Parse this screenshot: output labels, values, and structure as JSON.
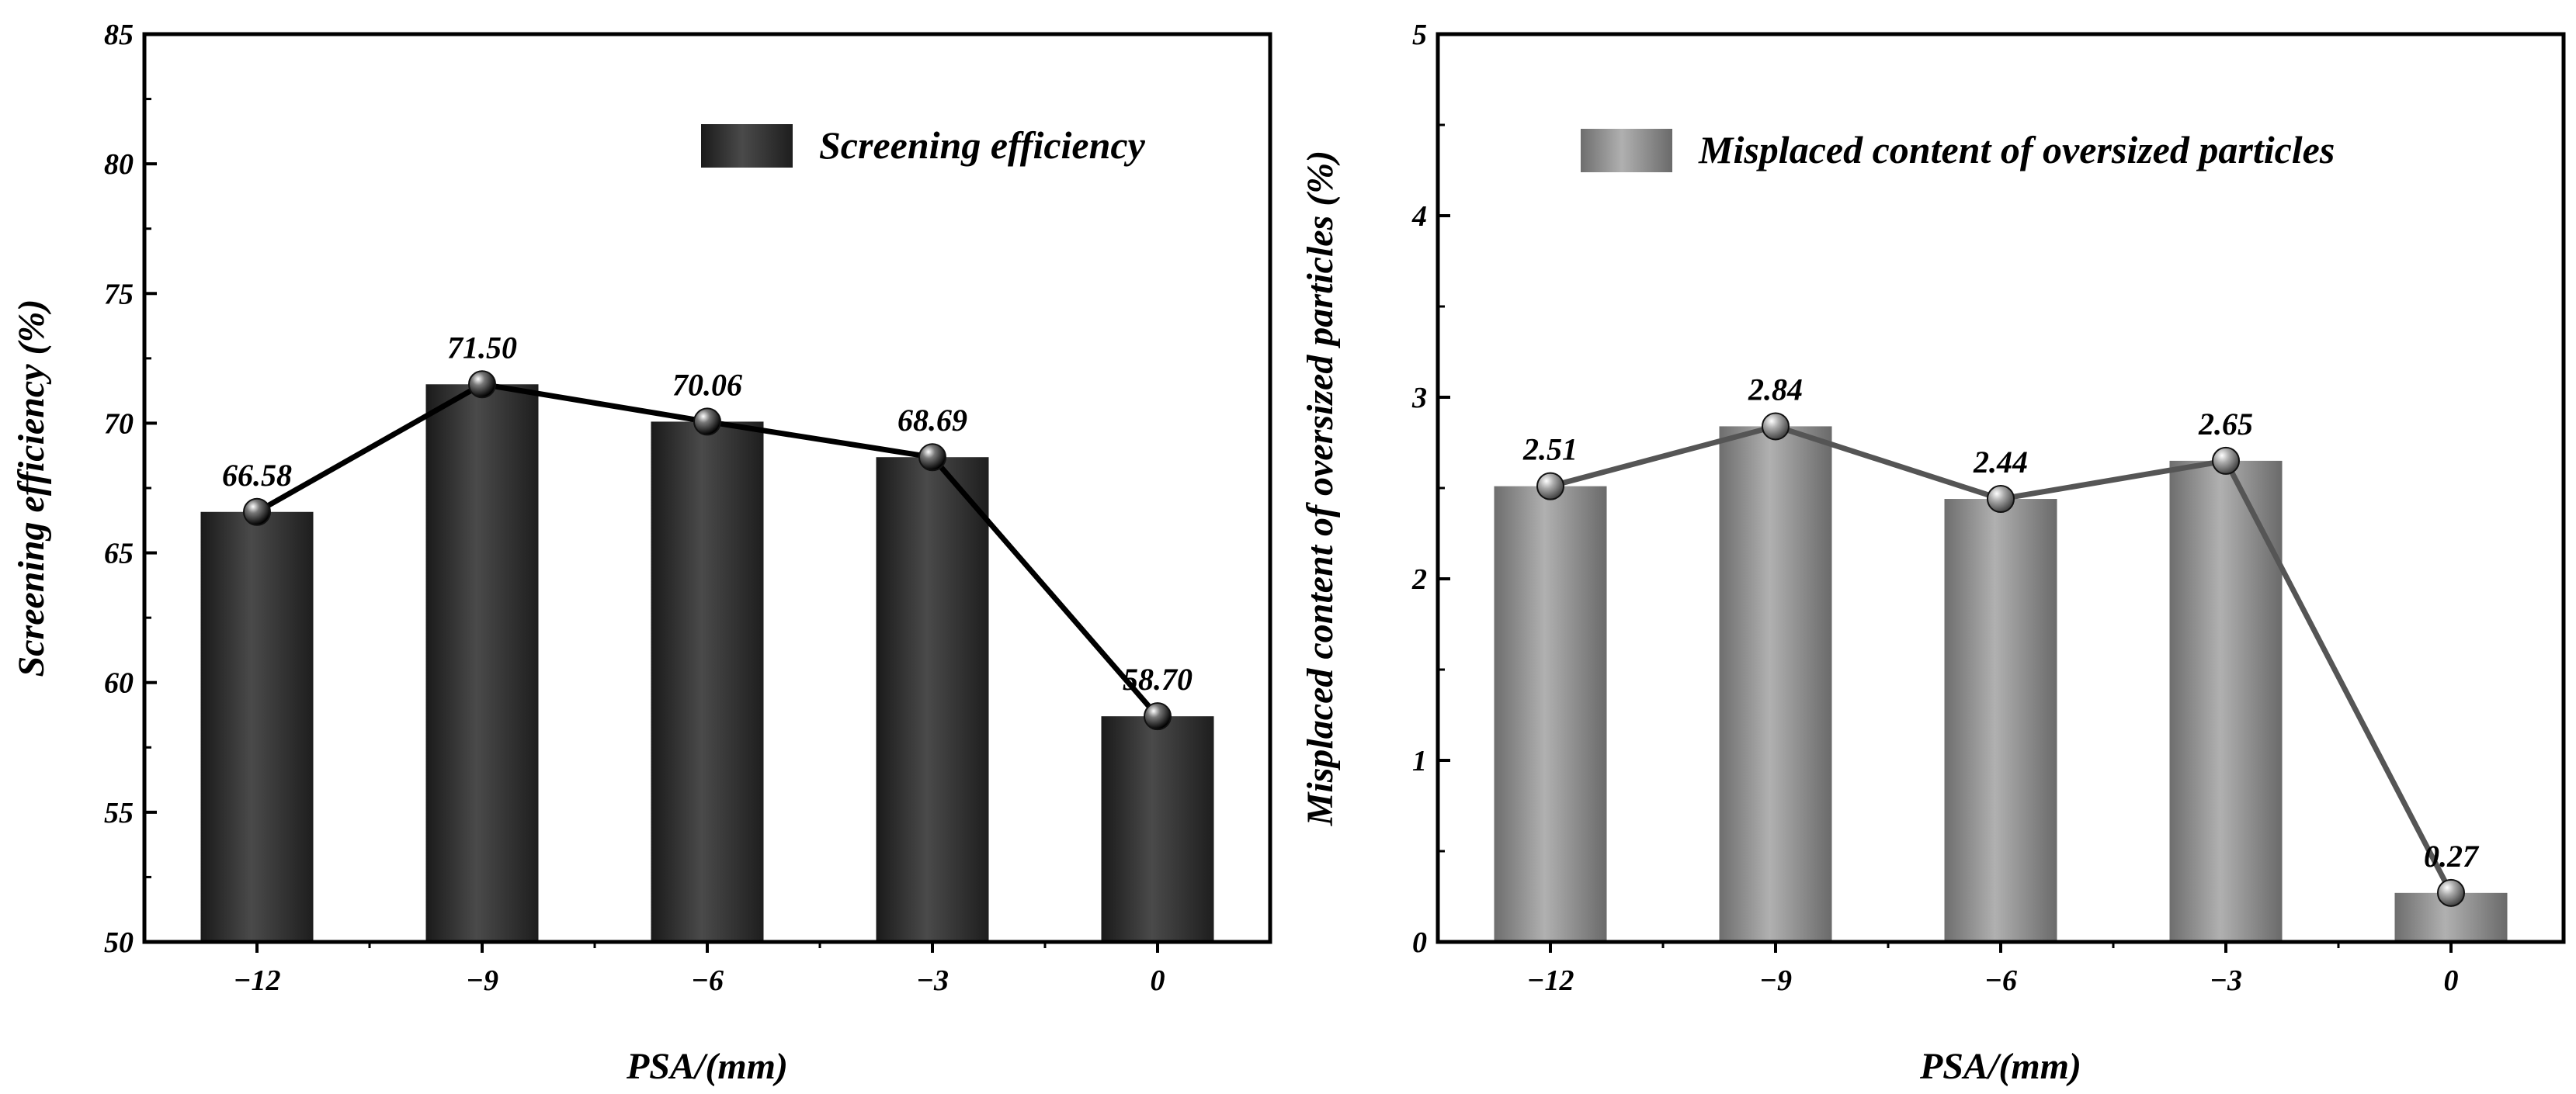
{
  "chart_data": [
    {
      "type": "bar",
      "title": "",
      "xlabel": "PSA/(mm)",
      "ylabel": "Screening efficiency (%)",
      "categories": [
        "−12",
        "−9",
        "−6",
        "−3",
        "0"
      ],
      "series": [
        {
          "name": "Screening efficiency",
          "values": [
            66.58,
            71.5,
            70.06,
            68.69,
            58.7
          ],
          "value_labels": [
            "66.58",
            "71.50",
            "70.06",
            "68.69",
            "58.70"
          ],
          "color": "#3a3a3a"
        }
      ],
      "overlay_line": true,
      "ylim": [
        50,
        85
      ],
      "yticks": [
        "50",
        "55",
        "60",
        "65",
        "70",
        "75",
        "80",
        "85"
      ],
      "grid": false,
      "legend": "top-right"
    },
    {
      "type": "bar",
      "title": "",
      "xlabel": "PSA/(mm)",
      "ylabel": "Misplaced content of oversized particles (%)",
      "categories": [
        "−12",
        "−9",
        "−6",
        "−3",
        "0"
      ],
      "series": [
        {
          "name": "Misplaced content of oversized particles",
          "values": [
            2.51,
            2.84,
            2.44,
            2.65,
            0.27
          ],
          "value_labels": [
            "2.51",
            "2.84",
            "2.44",
            "2.65",
            "0.27"
          ],
          "color": "#8a8a8a"
        }
      ],
      "overlay_line": true,
      "ylim": [
        0,
        5
      ],
      "yticks": [
        "0",
        "1",
        "2",
        "3",
        "4",
        "5"
      ],
      "grid": false,
      "legend": "top-right"
    }
  ]
}
